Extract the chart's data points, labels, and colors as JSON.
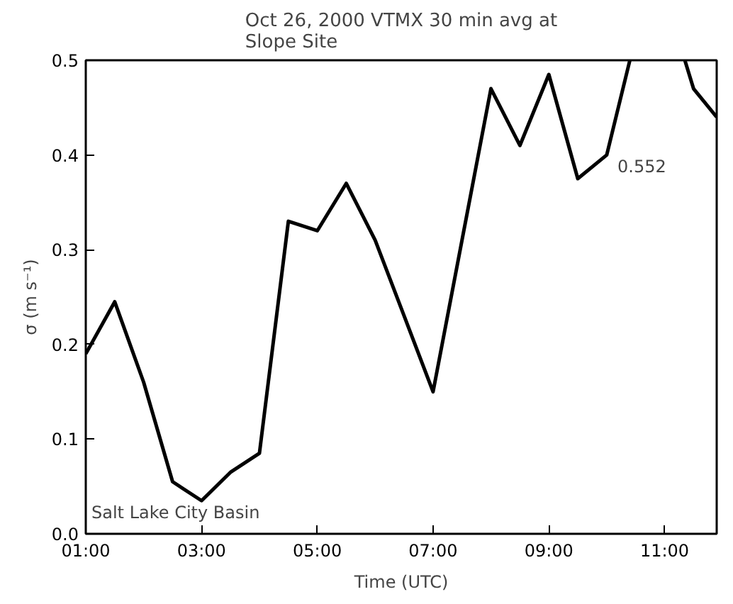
{
  "chart_data": {
    "type": "line",
    "title": "Oct 26, 2000 VTMX 30 min avg at\nSlope Site",
    "xlabel": "Time (UTC)",
    "ylabel": "σ (m s⁻¹)",
    "x": [
      1.0,
      1.5,
      2.0,
      2.5,
      3.0,
      3.5,
      4.0,
      4.5,
      5.0,
      5.5,
      6.0,
      6.5,
      7.0,
      7.5,
      8.0,
      8.5,
      9.0,
      9.5,
      10.0,
      10.4,
      10.5,
      11.0,
      11.35,
      11.5,
      11.9
    ],
    "series": [
      {
        "color": "#000000",
        "values": [
          0.19,
          0.245,
          0.16,
          0.055,
          0.035,
          0.065,
          0.085,
          0.33,
          0.32,
          0.37,
          0.31,
          0.23,
          0.15,
          0.31,
          0.47,
          0.41,
          0.485,
          0.375,
          0.4,
          0.5,
          null,
          null,
          0.5,
          0.47,
          0.44
        ]
      }
    ],
    "xlim": [
      1,
      11.9
    ],
    "ylim": [
      0,
      0.5
    ],
    "xticks": [
      {
        "value": 1,
        "label": "01:00"
      },
      {
        "value": 3,
        "label": "03:00"
      },
      {
        "value": 5,
        "label": "05:00"
      },
      {
        "value": 7,
        "label": "07:00"
      },
      {
        "value": 9,
        "label": "09:00"
      },
      {
        "value": 11,
        "label": "11:00"
      }
    ],
    "yticks": [
      {
        "value": 0,
        "label": "0.0"
      },
      0.1,
      0.2,
      0.3,
      0.4,
      0.5
    ],
    "annotations": [
      "0.552",
      "Salt Lake City Basin"
    ],
    "grid": false,
    "marker": "none",
    "line_style": "solid"
  }
}
